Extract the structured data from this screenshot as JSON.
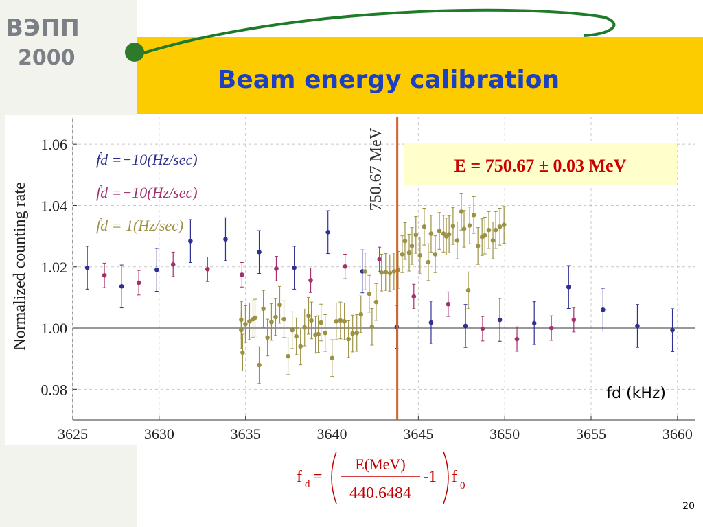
{
  "logo": {
    "line1": "ВЭПП",
    "line2": "2000"
  },
  "title": "Beam energy calibration",
  "chart_data": {
    "type": "errorbar",
    "ylabel": "Normalized counting rate",
    "xlabel": "fd (kHz)",
    "xlim": [
      3625,
      3661
    ],
    "ylim": [
      0.97,
      1.069
    ],
    "xticks": [
      3625,
      3630,
      3635,
      3640,
      3645,
      3650,
      3655,
      3660
    ],
    "yticks": [
      0.98,
      {
        "value": 1,
        "label": "1.00"
      },
      1.02,
      1.04,
      1.06
    ],
    "grid": true,
    "reference_line": 1,
    "marker": {
      "x": 3643.78,
      "label": "750.67 MeV",
      "color": "#d2622a"
    },
    "annotation": "E = 750.67 ± 0.03 MeV",
    "series": [
      {
        "name": "ḟd =−10(Hz/sec)",
        "color": "#2e3192",
        "error": 0.007,
        "x": [
          3625.84,
          3627.83,
          3629.86,
          3631.81,
          3633.84,
          3635.79,
          3637.82,
          3639.77,
          3641.76,
          3643.75,
          3645.74,
          3647.73,
          3649.72,
          3651.71,
          3653.7,
          3655.69,
          3657.68,
          3659.71
        ],
        "y": [
          1.0197,
          1.0136,
          1.019,
          1.0284,
          1.029,
          1.0248,
          1.0197,
          1.0313,
          1.0185,
          1.0004,
          1.0018,
          1.0007,
          1.0027,
          1.0016,
          1.0134,
          1.006,
          1.0007,
          0.9993
        ]
      },
      {
        "name": "ḟd =−10(Hz/sec)",
        "color": "#a3306f",
        "error": 0.004,
        "x": [
          3626.83,
          3628.82,
          3630.81,
          3632.8,
          3634.79,
          3636.78,
          3638.77,
          3640.76,
          3642.75,
          3644.74,
          3646.73,
          3648.72,
          3650.71,
          3652.7,
          3654.0
        ],
        "y": [
          1.0172,
          1.0148,
          1.0208,
          1.0192,
          1.0174,
          1.0194,
          1.0156,
          1.0201,
          1.0224,
          1.0103,
          1.0078,
          0.9998,
          0.9964,
          1.0,
          1.0027
        ]
      },
      {
        "name": "ḟd = 1(Hz/sec)",
        "color": "#9c9244",
        "error": 0.006,
        "x": [
          3634.75,
          3634.75,
          3634.83,
          3634.99,
          3635.23,
          3635.43,
          3635.55,
          3635.79,
          3636.03,
          3636.27,
          3636.5,
          3636.74,
          3636.98,
          3637.22,
          3637.46,
          3637.7,
          3637.94,
          3638.18,
          3638.42,
          3638.65,
          3638.81,
          3639.05,
          3639.21,
          3639.37,
          3639.61,
          3640.01,
          3640.25,
          3640.49,
          3640.72,
          3640.96,
          3641.2,
          3641.44,
          3641.68,
          3641.92,
          3642.16,
          3642.32,
          3642.56,
          3642.87,
          3643.11,
          3643.35,
          3643.59,
          3643.83,
          3644.07,
          3644.23,
          3644.47,
          3644.63,
          3644.86,
          3645.1,
          3645.34,
          3645.58,
          3645.74,
          3645.98,
          3646.22,
          3646.46,
          3646.62,
          3646.78,
          3647.01,
          3647.25,
          3647.49,
          3647.65,
          3647.89,
          3647.97,
          3648.21,
          3648.45,
          3648.69,
          3648.85,
          3649.08,
          3649.32,
          3649.48,
          3649.72,
          3649.96
        ],
        "y": [
          1.0027,
          0.9993,
          0.992,
          1.0013,
          1.0022,
          1.0029,
          1.0034,
          0.9879,
          1.0063,
          0.9969,
          1.002,
          1.0036,
          1.0076,
          1.0029,
          0.9908,
          0.9993,
          0.9973,
          0.994,
          1.0002,
          1.004,
          1.0025,
          0.9978,
          0.998,
          1.0018,
          0.9984,
          0.9902,
          1.0022,
          1.0025,
          1.0022,
          0.9964,
          0.9982,
          0.9984,
          1.0045,
          1.0185,
          1.0112,
          1.0004,
          1.0085,
          1.0181,
          1.0183,
          1.0179,
          1.0185,
          1.019,
          1.0241,
          1.0284,
          1.0246,
          1.0268,
          1.0304,
          1.0237,
          1.0331,
          1.0215,
          1.0308,
          1.0241,
          1.0317,
          1.0308,
          1.0299,
          1.0306,
          1.0333,
          1.0286,
          1.038,
          1.0324,
          1.0123,
          1.0335,
          1.0369,
          1.0268,
          1.0297,
          1.0302,
          1.032,
          1.0286,
          1.032,
          1.0331,
          1.0337
        ]
      }
    ]
  },
  "formula": {
    "f": "f",
    "sub_d": "d",
    "eq": "=",
    "numerator": "E(MeV)",
    "denominator": "440.6484",
    "minus_one": "-1",
    "f0": "f",
    "sub_0": "0"
  },
  "page_number": "20"
}
